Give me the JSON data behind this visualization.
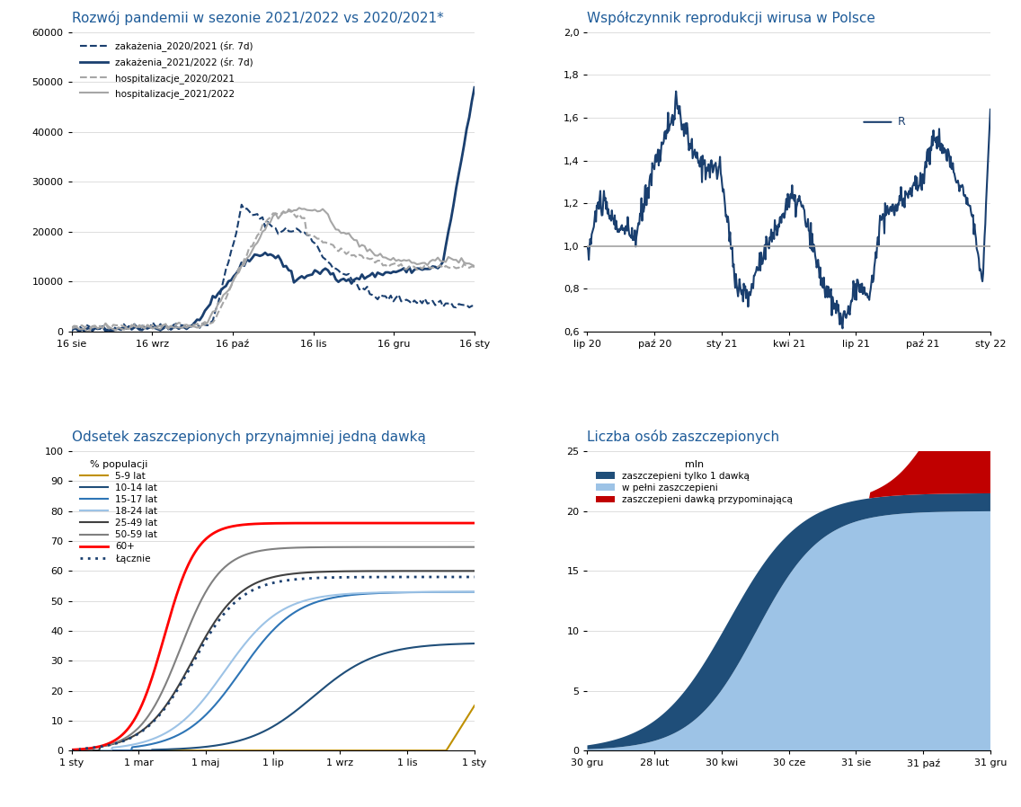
{
  "title_tl": "Rozwój pandemii w sezonie 2021/2022 vs 2020/2021*",
  "title_tr": "Współczynnik reprodukcji wirusa w Polsce",
  "title_bl": "Odsetek zaszczepionych przynajmniej jedną dawką",
  "title_br": "Liczba osób zaszczepionych",
  "title_color": "#1F5C99",
  "bg_color": "#FFFFFF",
  "tl_xticks": [
    "16 sie",
    "16 wrz",
    "16 paź",
    "16 lis",
    "16 gru",
    "16 sty"
  ],
  "tl_yticks": [
    0,
    10000,
    20000,
    30000,
    40000,
    50000,
    60000
  ],
  "tr_xticks": [
    "lip 20",
    "paź 20",
    "sty 21",
    "kwi 21",
    "lip 21",
    "paź 21",
    "sty 22"
  ],
  "tr_yticks_labels": [
    "0,6",
    "0,8",
    "1,0",
    "1,2",
    "1,4",
    "1,6",
    "1,8",
    "2,0"
  ],
  "tr_yticks_vals": [
    0.6,
    0.8,
    1.0,
    1.2,
    1.4,
    1.6,
    1.8,
    2.0
  ],
  "bl_xticks": [
    "1 sty",
    "1 mar",
    "1 maj",
    "1 lip",
    "1 wrz",
    "1 lis",
    "1 sty"
  ],
  "bl_yticks": [
    0,
    10,
    20,
    30,
    40,
    50,
    60,
    70,
    80,
    90,
    100
  ],
  "br_xticks": [
    "30 gru",
    "28 lut",
    "30 kwi",
    "30 cze",
    "31 sie",
    "31 paź",
    "31 gru"
  ],
  "br_yticks": [
    0,
    5,
    10,
    15,
    20,
    25
  ],
  "dark_blue": "#1A3F6F",
  "mid_blue": "#2E75B6",
  "light_blue": "#9DC3E6",
  "gray_mid": "#A6A6A6",
  "red": "#C00000",
  "gold": "#BF9000",
  "navy_dose1": "#1F4E79",
  "blue_15_17": "#2E75B6",
  "blue_18_24": "#9DC3E6",
  "gray_25_49": "#404040",
  "gray_50_59": "#808080"
}
